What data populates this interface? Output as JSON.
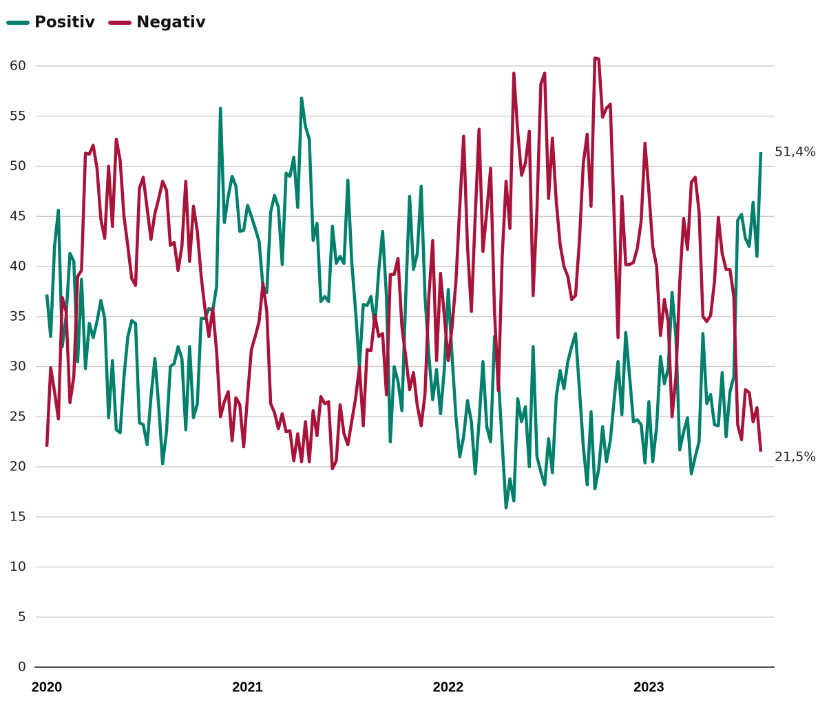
{
  "chart_data": {
    "type": "line",
    "categories": [
      "2020",
      null,
      null,
      null,
      null,
      null,
      null,
      null,
      null,
      null,
      null,
      null,
      null,
      null,
      null,
      null,
      null,
      null,
      null,
      null,
      null,
      null,
      null,
      null,
      null,
      null,
      null,
      null,
      null,
      null,
      null,
      null,
      null,
      null,
      null,
      null,
      null,
      null,
      null,
      null,
      null,
      null,
      null,
      null,
      null,
      null,
      null,
      null,
      null,
      null,
      null,
      null,
      "2021",
      null,
      null,
      null,
      null,
      null,
      null,
      null,
      null,
      null,
      null,
      null,
      null,
      null,
      null,
      null,
      null,
      null,
      null,
      null,
      null,
      null,
      null,
      null,
      null,
      null,
      null,
      null,
      null,
      null,
      null,
      null,
      null,
      null,
      null,
      null,
      null,
      null,
      null,
      null,
      null,
      null,
      null,
      null,
      null,
      null,
      null,
      null,
      null,
      null,
      null,
      null,
      "2022",
      null,
      null,
      null,
      null,
      null,
      null,
      null,
      null,
      null,
      null,
      null,
      null,
      null,
      null,
      null,
      null,
      null,
      null,
      null,
      null,
      null,
      null,
      null,
      null,
      null,
      null,
      null,
      null,
      null,
      null,
      null,
      null,
      null,
      null,
      null,
      null,
      null,
      null,
      null,
      null,
      null,
      null,
      null,
      null,
      null,
      null,
      null,
      null,
      null,
      null,
      null,
      "2023",
      null,
      null,
      null,
      null,
      null,
      null,
      null,
      null,
      null,
      null,
      null,
      null,
      null,
      null,
      null,
      null,
      null,
      null,
      null,
      null,
      null,
      null,
      null,
      null,
      null,
      null,
      null,
      null,
      null
    ],
    "series": [
      {
        "name": "Positiv",
        "color": "#00806c",
        "values": [
          37.2,
          33,
          42,
          45.6,
          32,
          35,
          41.3,
          40.5,
          30.5,
          38.7,
          29.8,
          34.3,
          32.9,
          34.5,
          36.6,
          34.8,
          24.9,
          30.6,
          23.7,
          23.4,
          29,
          33,
          34.6,
          34.3,
          24.4,
          24.2,
          22.2,
          27,
          30.8,
          26,
          20.3,
          23.5,
          30,
          30.3,
          32,
          30.8,
          23.7,
          32,
          24.9,
          26.3,
          34.8,
          34.8,
          35.8,
          35.6,
          38,
          55.8,
          44.4,
          47,
          49,
          48,
          43.5,
          43.6,
          46.1,
          45,
          43.8,
          42.5,
          38,
          37.4,
          45.4,
          47.1,
          45.9,
          40.2,
          49.3,
          49,
          50.9,
          45.9,
          56.8,
          54,
          52.7,
          42.6,
          44.3,
          36.5,
          37,
          36.5,
          44,
          40.3,
          41,
          40.3,
          48.6,
          40.5,
          35.6,
          30,
          36.2,
          36.1,
          37,
          34,
          39.6,
          43.5,
          37,
          22.5,
          30,
          28.5,
          25.6,
          37,
          47,
          39.7,
          41.3,
          48,
          37,
          31,
          26.7,
          29.7,
          25.3,
          29.8,
          37.7,
          31,
          25,
          21,
          23,
          26.6,
          24.5,
          19.3,
          24.5,
          30.5,
          24,
          22.5,
          33,
          29,
          22.3,
          15.9,
          18.8,
          16.6,
          26.8,
          24.5,
          26,
          20,
          32,
          21,
          19.5,
          18.2,
          22.8,
          19.4,
          27,
          29.6,
          27.8,
          30.5,
          32,
          33.3,
          27.8,
          22,
          18.2,
          25.5,
          17.8,
          19.8,
          24,
          20.5,
          22.6,
          26.7,
          30.5,
          25.2,
          33.4,
          29,
          24.5,
          24.7,
          24.2,
          20.4,
          26.5,
          20.5,
          24,
          31,
          28.3,
          29.8,
          37.4,
          33,
          21.7,
          23.5,
          24.9,
          19.3,
          21,
          22.5,
          33.3,
          26.3,
          27.2,
          24.2,
          24.1,
          29.4,
          23,
          27.5,
          29,
          44.6,
          45.2,
          42.8,
          42,
          46.4,
          41,
          51.4
        ]
      },
      {
        "name": "Negativ",
        "color": "#a8133a",
        "values": [
          22,
          29.9,
          27.5,
          24.8,
          36.9,
          35.5,
          26.4,
          29,
          39,
          39.6,
          51.3,
          51.2,
          52.1,
          49.8,
          44.7,
          42.8,
          50,
          44,
          52.7,
          50.6,
          45,
          42,
          38.8,
          38.1,
          47.8,
          48.9,
          45.8,
          42.7,
          45.3,
          46.8,
          48.5,
          47.6,
          42.1,
          42.4,
          39.6,
          42,
          48.5,
          40.5,
          46,
          43.5,
          39,
          35.7,
          33,
          35.8,
          31.5,
          25,
          26.5,
          27.5,
          22.6,
          26.9,
          26.2,
          22,
          27,
          31.7,
          33,
          34.5,
          38.3,
          35.5,
          26.3,
          25.4,
          23.8,
          25.3,
          23.5,
          23.6,
          20.6,
          23.3,
          20.5,
          24.5,
          20.5,
          25.6,
          23.1,
          27,
          26.3,
          26.5,
          19.8,
          20.6,
          26.2,
          23.3,
          22.2,
          24.5,
          26.8,
          30,
          24.1,
          31.7,
          31.6,
          35.1,
          33,
          33.3,
          27.2,
          39.2,
          39.2,
          40.8,
          34,
          31,
          27.7,
          29.4,
          26.1,
          24.1,
          27.3,
          37,
          42.6,
          30.6,
          39.3,
          35,
          30.6,
          34,
          38.5,
          46,
          53,
          42,
          35.5,
          45,
          53.7,
          41.5,
          45.5,
          49.8,
          35.5,
          27.6,
          41,
          48.5,
          43.8,
          59.3,
          53.5,
          49.1,
          50.3,
          53.5,
          37.1,
          45.7,
          58.2,
          59.3,
          46.8,
          52.8,
          46.5,
          42.2,
          40,
          39,
          36.7,
          37.1,
          42.5,
          50.3,
          53.2,
          46,
          60.8,
          60.7,
          54.9,
          55.8,
          56.2,
          45,
          32.9,
          47,
          40.2,
          40.2,
          40.4,
          41.8,
          44.5,
          52.3,
          47.5,
          42,
          40,
          33.1,
          36.7,
          34.5,
          25,
          29,
          38.5,
          44.8,
          41.7,
          48.4,
          48.9,
          45.5,
          35,
          34.5,
          35.1,
          38.5,
          44.9,
          41.3,
          39.7,
          39.7,
          37,
          24.2,
          22.7,
          27.7,
          27.4,
          24.5,
          25.9,
          21.5
        ]
      }
    ],
    "annotations": [
      "51,4%",
      "21,5%"
    ],
    "ylim": [
      0,
      60
    ],
    "yticks": [
      0,
      5,
      10,
      15,
      20,
      25,
      30,
      35,
      40,
      45,
      50,
      55,
      60
    ],
    "grid": true,
    "legend": "top-left"
  }
}
